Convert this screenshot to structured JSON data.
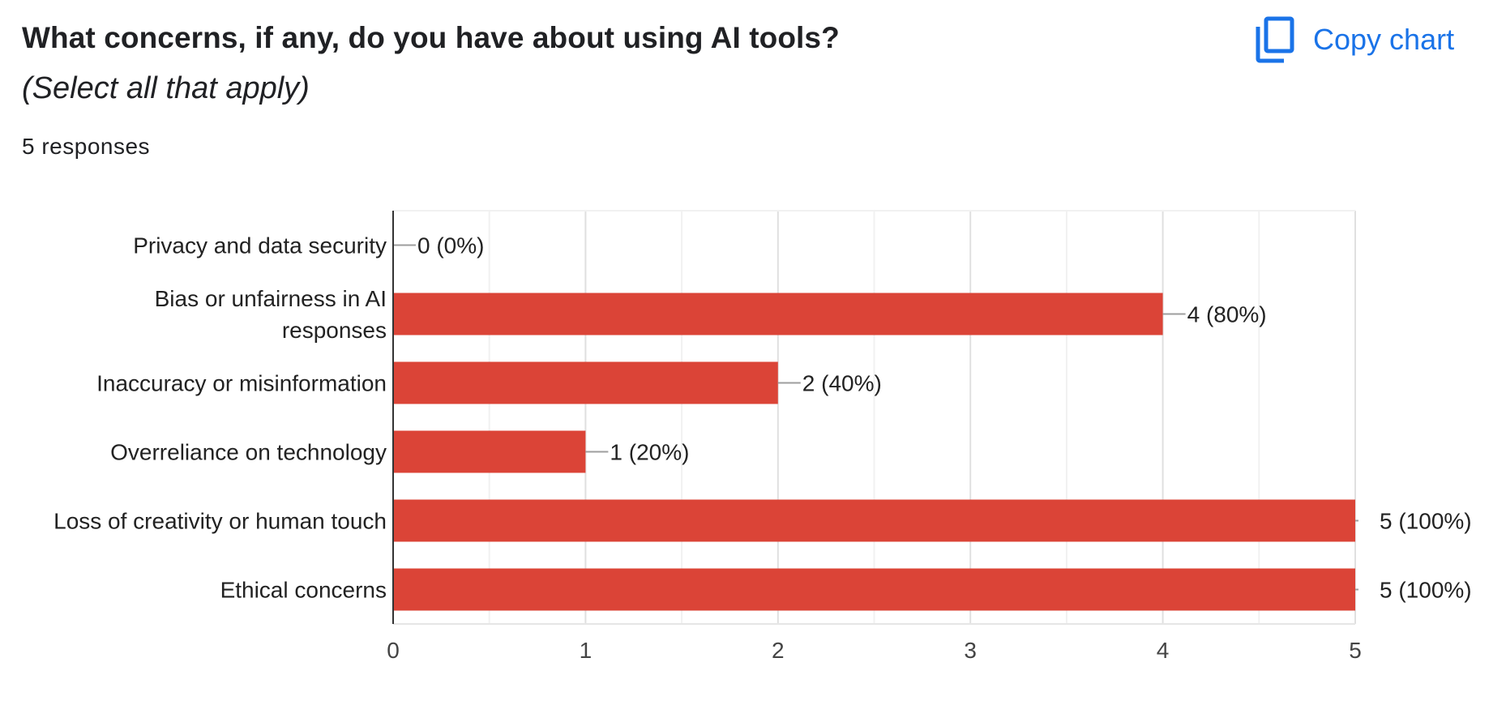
{
  "header": {
    "title": "What concerns, if any, do you have about using AI tools?",
    "subtitle": "(Select all that apply)",
    "responses": "5 responses",
    "copy_label": "Copy chart",
    "copy_icon": "content-copy-icon",
    "accent_color": "#1a73e8"
  },
  "chart_data": {
    "type": "bar",
    "orientation": "horizontal",
    "categories": [
      [
        "Privacy and data security"
      ],
      [
        "Bias or unfairness in AI",
        "responses"
      ],
      [
        "Inaccuracy or misinformation"
      ],
      [
        "Overreliance on technology"
      ],
      [
        "Loss of creativity or human touch"
      ],
      [
        "Ethical concerns"
      ]
    ],
    "values": [
      0,
      4,
      2,
      1,
      5,
      5
    ],
    "data_labels": [
      "0 (0%)",
      "4 (80%)",
      "2 (40%)",
      "1 (20%)",
      "5 (100%)",
      "5 (100%)"
    ],
    "x_ticks": [
      "0",
      "1",
      "2",
      "3",
      "4",
      "5"
    ],
    "xlim": [
      0,
      5
    ],
    "grid": true,
    "bar_color": "#db4437",
    "xlabel": "",
    "ylabel": ""
  }
}
